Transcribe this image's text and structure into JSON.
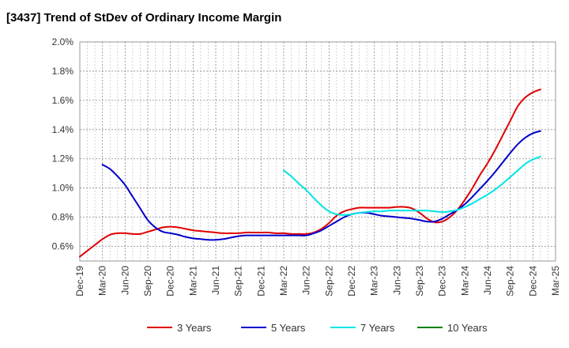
{
  "chart_data": {
    "type": "line",
    "title": "[3437]  Trend of StDev of Ordinary Income Margin",
    "xlabel": "",
    "ylabel": "",
    "x_ticks": [
      "Dec-19",
      "Mar-20",
      "Jun-20",
      "Sep-20",
      "Dec-20",
      "Mar-21",
      "Jun-21",
      "Sep-21",
      "Dec-21",
      "Mar-22",
      "Jun-22",
      "Sep-22",
      "Dec-22",
      "Mar-23",
      "Jun-23",
      "Sep-23",
      "Dec-23",
      "Mar-24",
      "Jun-24",
      "Sep-24",
      "Dec-24",
      "Mar-25"
    ],
    "y_ticks": [
      "0.6%",
      "0.8%",
      "1.0%",
      "1.2%",
      "1.4%",
      "1.6%",
      "1.8%",
      "2.0%"
    ],
    "ylim": [
      0.5,
      2.0
    ],
    "grid": true,
    "legend_position": "bottom",
    "series": [
      {
        "name": "3 Years",
        "color": "#e00000",
        "points": [
          [
            "Dec-19",
            0.53
          ],
          [
            "Jan-20",
            0.57
          ],
          [
            "Feb-20",
            0.61
          ],
          [
            "Mar-20",
            0.65
          ],
          [
            "Apr-20",
            0.68
          ],
          [
            "May-20",
            0.69
          ],
          [
            "Jun-20",
            0.69
          ],
          [
            "Jul-20",
            0.685
          ],
          [
            "Aug-20",
            0.685
          ],
          [
            "Sep-20",
            0.7
          ],
          [
            "Oct-20",
            0.715
          ],
          [
            "Nov-20",
            0.73
          ],
          [
            "Dec-20",
            0.735
          ],
          [
            "Jan-21",
            0.73
          ],
          [
            "Feb-21",
            0.72
          ],
          [
            "Mar-21",
            0.71
          ],
          [
            "Apr-21",
            0.705
          ],
          [
            "May-21",
            0.7
          ],
          [
            "Jun-21",
            0.695
          ],
          [
            "Jul-21",
            0.69
          ],
          [
            "Aug-21",
            0.69
          ],
          [
            "Sep-21",
            0.69
          ],
          [
            "Oct-21",
            0.695
          ],
          [
            "Nov-21",
            0.695
          ],
          [
            "Dec-21",
            0.695
          ],
          [
            "Jan-22",
            0.695
          ],
          [
            "Feb-22",
            0.69
          ],
          [
            "Mar-22",
            0.69
          ],
          [
            "Apr-22",
            0.685
          ],
          [
            "May-22",
            0.685
          ],
          [
            "Jun-22",
            0.685
          ],
          [
            "Jul-22",
            0.695
          ],
          [
            "Aug-22",
            0.72
          ],
          [
            "Sep-22",
            0.76
          ],
          [
            "Oct-22",
            0.81
          ],
          [
            "Nov-22",
            0.84
          ],
          [
            "Dec-22",
            0.855
          ],
          [
            "Jan-23",
            0.865
          ],
          [
            "Feb-23",
            0.865
          ],
          [
            "Mar-23",
            0.865
          ],
          [
            "Apr-23",
            0.865
          ],
          [
            "May-23",
            0.865
          ],
          [
            "Jun-23",
            0.87
          ],
          [
            "Jul-23",
            0.87
          ],
          [
            "Aug-23",
            0.86
          ],
          [
            "Sep-23",
            0.83
          ],
          [
            "Oct-23",
            0.79
          ],
          [
            "Nov-23",
            0.765
          ],
          [
            "Dec-23",
            0.77
          ],
          [
            "Jan-24",
            0.8
          ],
          [
            "Feb-24",
            0.85
          ],
          [
            "Mar-24",
            0.92
          ],
          [
            "Apr-24",
            1.0
          ],
          [
            "May-24",
            1.09
          ],
          [
            "Jun-24",
            1.17
          ],
          [
            "Jul-24",
            1.26
          ],
          [
            "Aug-24",
            1.36
          ],
          [
            "Sep-24",
            1.46
          ],
          [
            "Oct-24",
            1.56
          ],
          [
            "Nov-24",
            1.62
          ],
          [
            "Dec-24",
            1.655
          ],
          [
            "Jan-25",
            1.675
          ]
        ]
      },
      {
        "name": "5 Years",
        "color": "#0000cc",
        "points": [
          [
            "Mar-20",
            1.16
          ],
          [
            "Apr-20",
            1.13
          ],
          [
            "May-20",
            1.08
          ],
          [
            "Jun-20",
            1.02
          ],
          [
            "Jul-20",
            0.94
          ],
          [
            "Aug-20",
            0.86
          ],
          [
            "Sep-20",
            0.78
          ],
          [
            "Oct-20",
            0.73
          ],
          [
            "Nov-20",
            0.7
          ],
          [
            "Dec-20",
            0.69
          ],
          [
            "Jan-21",
            0.68
          ],
          [
            "Feb-21",
            0.665
          ],
          [
            "Mar-21",
            0.655
          ],
          [
            "Apr-21",
            0.65
          ],
          [
            "May-21",
            0.645
          ],
          [
            "Jun-21",
            0.645
          ],
          [
            "Jul-21",
            0.65
          ],
          [
            "Aug-21",
            0.66
          ],
          [
            "Sep-21",
            0.67
          ],
          [
            "Oct-21",
            0.675
          ],
          [
            "Nov-21",
            0.675
          ],
          [
            "Dec-21",
            0.675
          ],
          [
            "Jan-22",
            0.675
          ],
          [
            "Feb-22",
            0.675
          ],
          [
            "Mar-22",
            0.675
          ],
          [
            "Apr-22",
            0.675
          ],
          [
            "May-22",
            0.675
          ],
          [
            "Jun-22",
            0.675
          ],
          [
            "Jul-22",
            0.69
          ],
          [
            "Aug-22",
            0.71
          ],
          [
            "Sep-22",
            0.74
          ],
          [
            "Oct-22",
            0.77
          ],
          [
            "Nov-22",
            0.8
          ],
          [
            "Dec-22",
            0.82
          ],
          [
            "Jan-23",
            0.83
          ],
          [
            "Feb-23",
            0.83
          ],
          [
            "Mar-23",
            0.82
          ],
          [
            "Apr-23",
            0.81
          ],
          [
            "May-23",
            0.805
          ],
          [
            "Jun-23",
            0.8
          ],
          [
            "Jul-23",
            0.795
          ],
          [
            "Aug-23",
            0.79
          ],
          [
            "Sep-23",
            0.78
          ],
          [
            "Oct-23",
            0.77
          ],
          [
            "Nov-23",
            0.77
          ],
          [
            "Dec-23",
            0.79
          ],
          [
            "Jan-24",
            0.82
          ],
          [
            "Feb-24",
            0.85
          ],
          [
            "Mar-24",
            0.89
          ],
          [
            "Apr-24",
            0.94
          ],
          [
            "May-24",
            0.995
          ],
          [
            "Jun-24",
            1.05
          ],
          [
            "Jul-24",
            1.11
          ],
          [
            "Aug-24",
            1.175
          ],
          [
            "Sep-24",
            1.24
          ],
          [
            "Oct-24",
            1.3
          ],
          [
            "Nov-24",
            1.345
          ],
          [
            "Dec-24",
            1.375
          ],
          [
            "Jan-25",
            1.39
          ]
        ]
      },
      {
        "name": "7 Years",
        "color": "#00e5e5",
        "points": [
          [
            "Mar-22",
            1.12
          ],
          [
            "Apr-22",
            1.08
          ],
          [
            "May-22",
            1.03
          ],
          [
            "Jun-22",
            0.985
          ],
          [
            "Jul-22",
            0.93
          ],
          [
            "Aug-22",
            0.88
          ],
          [
            "Sep-22",
            0.84
          ],
          [
            "Oct-22",
            0.82
          ],
          [
            "Nov-22",
            0.815
          ],
          [
            "Dec-22",
            0.82
          ],
          [
            "Jan-23",
            0.83
          ],
          [
            "Feb-23",
            0.835
          ],
          [
            "Mar-23",
            0.84
          ],
          [
            "Apr-23",
            0.84
          ],
          [
            "May-23",
            0.845
          ],
          [
            "Jun-23",
            0.845
          ],
          [
            "Jul-23",
            0.845
          ],
          [
            "Aug-23",
            0.845
          ],
          [
            "Sep-23",
            0.845
          ],
          [
            "Oct-23",
            0.845
          ],
          [
            "Nov-23",
            0.84
          ],
          [
            "Dec-23",
            0.835
          ],
          [
            "Jan-24",
            0.84
          ],
          [
            "Feb-24",
            0.85
          ],
          [
            "Mar-24",
            0.87
          ],
          [
            "Apr-24",
            0.895
          ],
          [
            "May-24",
            0.925
          ],
          [
            "Jun-24",
            0.955
          ],
          [
            "Jul-24",
            0.99
          ],
          [
            "Aug-24",
            1.03
          ],
          [
            "Sep-24",
            1.075
          ],
          [
            "Oct-24",
            1.12
          ],
          [
            "Nov-24",
            1.165
          ],
          [
            "Dec-24",
            1.195
          ],
          [
            "Jan-25",
            1.215
          ]
        ]
      },
      {
        "name": "10 Years",
        "color": "#008000",
        "points": []
      }
    ]
  }
}
